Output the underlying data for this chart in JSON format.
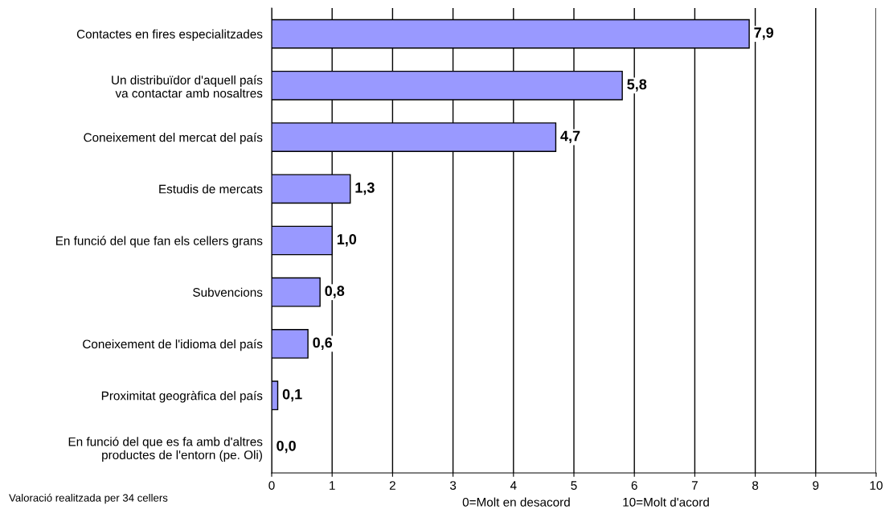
{
  "chart_data": {
    "type": "bar",
    "orientation": "horizontal",
    "categories": [
      "Contactes en fires especialitzades",
      "Un distribuïdor d'aquell país\nva contactar amb nosaltres",
      "Coneixement del mercat del país",
      "Estudis de mercats",
      "En funció del que fan els cellers grans",
      "Subvencions",
      "Coneixement de l'idioma del país",
      "Proximitat geogràfica del país",
      "En funció del que es fa amb d'altres\nproductes de l'entorn (pe. Oli)"
    ],
    "values": [
      7.9,
      5.8,
      4.7,
      1.3,
      1.0,
      0.8,
      0.6,
      0.1,
      0.0
    ],
    "value_labels": [
      "7,9",
      "5,8",
      "4,7",
      "1,3",
      "1,0",
      "0,8",
      "0,6",
      "0,1",
      "0,0"
    ],
    "color": "#9999ff",
    "xlim": [
      0,
      10
    ],
    "xticks": [
      0,
      1,
      2,
      3,
      4,
      5,
      6,
      7,
      8,
      9,
      10
    ],
    "grid": "x",
    "annotations": [
      "Valoració realitzada per 34 cellers",
      "0=Molt en desacord",
      "10=Molt d'acord"
    ]
  }
}
